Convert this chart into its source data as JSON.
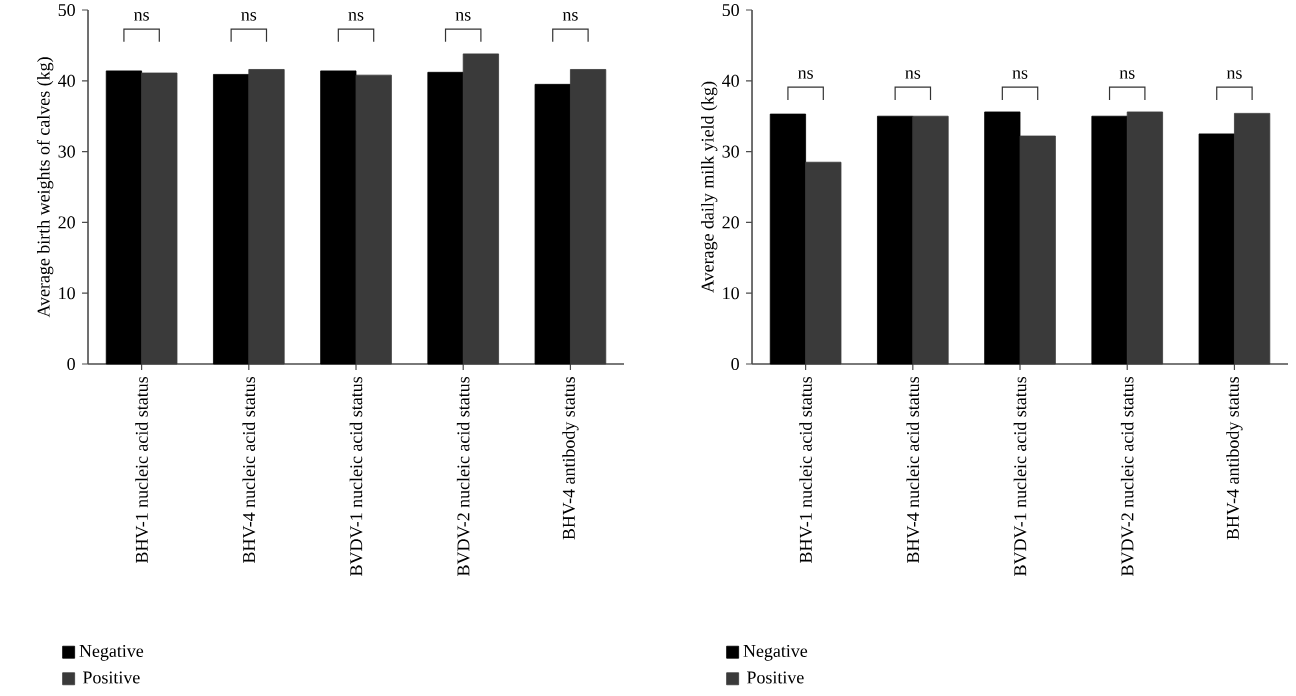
{
  "chart_data": [
    {
      "type": "bar",
      "ylabel": "Average birth weights of calves (kg)",
      "categories": [
        "BHV-1 nucleic acid status",
        "BHV-4 nucleic acid status",
        "BVDV-1 nucleic acid status",
        "BVDV-2 nucleic acid status",
        "BHV-4 antibody status"
      ],
      "series": [
        {
          "name": "Negative",
          "color": "#000000",
          "values": [
            41.4,
            40.9,
            41.4,
            41.2,
            39.5
          ]
        },
        {
          "name": "Positive",
          "color": "#3a3a3a",
          "values": [
            41.1,
            41.6,
            40.8,
            43.8,
            41.6
          ]
        }
      ],
      "ylim": [
        0,
        50
      ],
      "yticks": [
        0,
        10,
        20,
        30,
        40,
        50
      ],
      "legend": "bottom left",
      "annotations": [
        "ns",
        "ns",
        "ns",
        "ns",
        "ns"
      ]
    },
    {
      "type": "bar",
      "ylabel": "Average daily milk yield (kg)",
      "categories": [
        "BHV-1 nucleic acid status",
        "BHV-4 nucleic acid status",
        "BVDV-1 nucleic acid status",
        "BVDV-2 nucleic acid status",
        "BHV-4 antibody status"
      ],
      "series": [
        {
          "name": "Negative",
          "color": "#000000",
          "values": [
            35.3,
            35.0,
            35.6,
            35.0,
            32.5
          ]
        },
        {
          "name": "Positive",
          "color": "#3a3a3a",
          "values": [
            28.5,
            35.0,
            32.2,
            35.6,
            35.4
          ]
        }
      ],
      "ylim": [
        0,
        50
      ],
      "yticks": [
        0,
        10,
        20,
        30,
        40,
        50
      ],
      "legend": "bottom left",
      "annotations": [
        "ns",
        "ns",
        "ns",
        "ns",
        "ns"
      ]
    }
  ]
}
